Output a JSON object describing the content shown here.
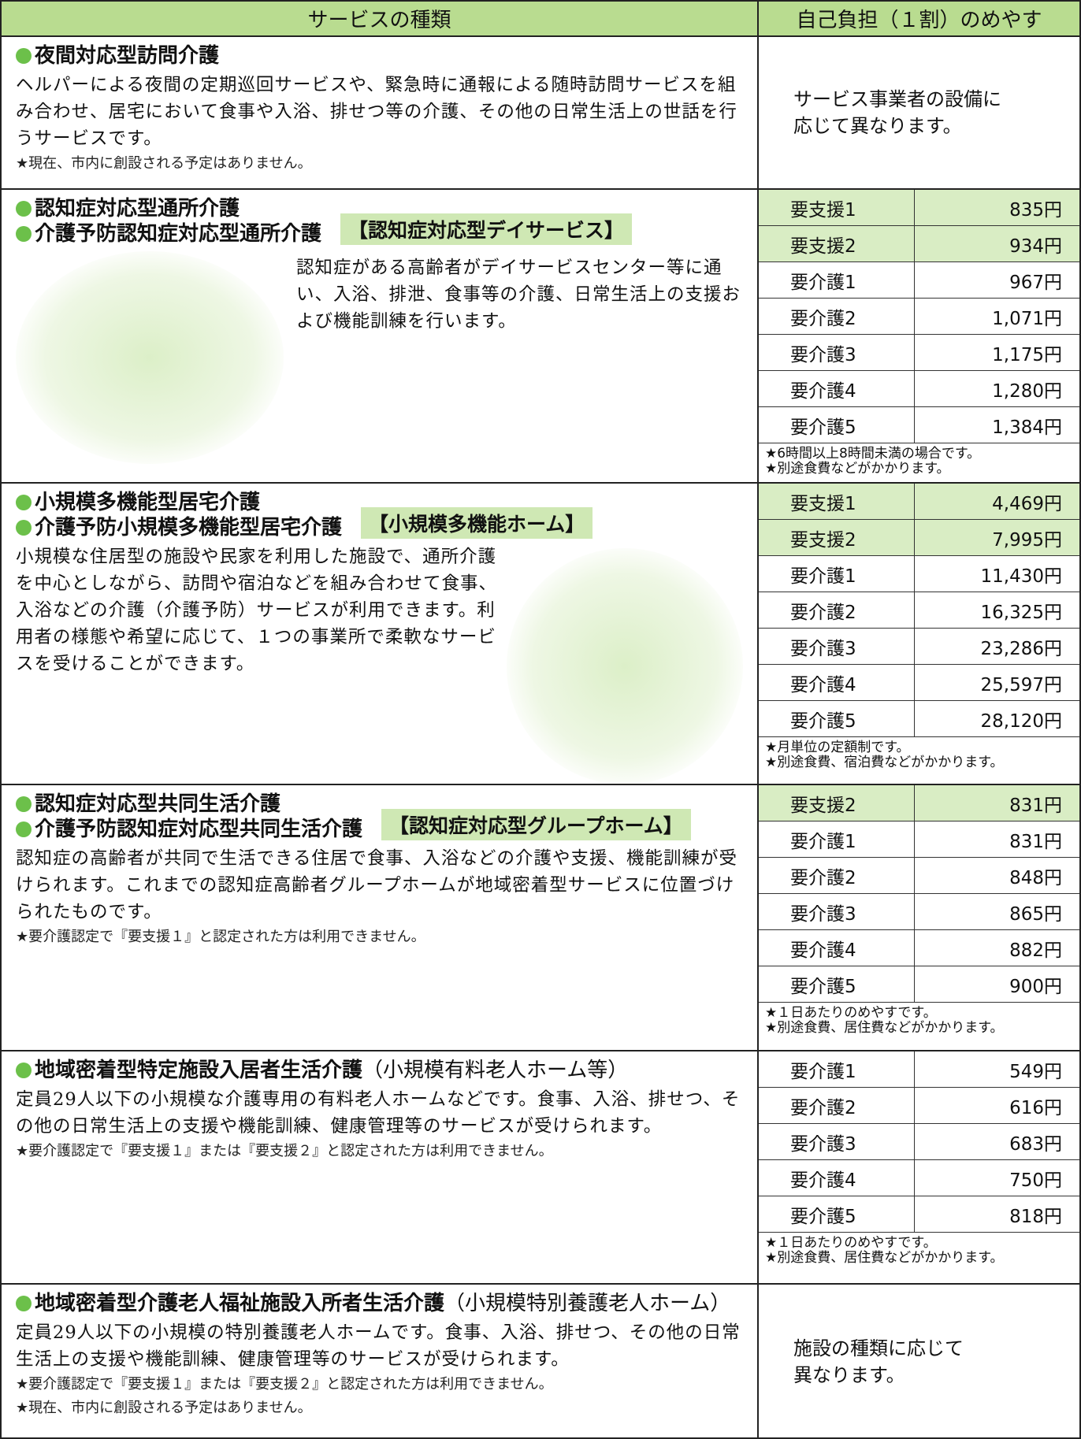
{
  "header": {
    "service": "サービスの種類",
    "cost": "自己負担（１割）のめやす"
  },
  "rows": [
    {
      "titles": [
        "夜間対応型訪問介護"
      ],
      "description": "ヘルパーによる夜間の定期巡回サービスや、緊急時に通報による随時訪問サービスを組み合わせ、居宅において食事や入浴、排せつ等の介護、その他の日常生活上の世話を行うサービスです。",
      "notes": [
        "★現在、市内に創設される予定はありません。"
      ],
      "cost_lines": [
        "サービス事業者の設備に",
        "応じて異なります。"
      ]
    },
    {
      "titles": [
        "認知症対応型通所介護",
        "介護予防認知症対応型通所介護"
      ],
      "tag": "【認知症対応型デイサービス】",
      "description": "認知症がある高齢者がデイサービスセンター等に通い、入浴、排泄、食事等の介護、日常生活上の支援および機能訓練を行います。",
      "prices": [
        {
          "level": "要支援1",
          "amount": "835円"
        },
        {
          "level": "要支援2",
          "amount": "934円"
        },
        {
          "level": "要介護1",
          "amount": "967円"
        },
        {
          "level": "要介護2",
          "amount": "1,071円"
        },
        {
          "level": "要介護3",
          "amount": "1,175円"
        },
        {
          "level": "要介護4",
          "amount": "1,280円"
        },
        {
          "level": "要介護5",
          "amount": "1,384円"
        }
      ],
      "price_notes": [
        "★6時間以上8時間未満の場合です。",
        "★別途食費などがかかります。"
      ]
    },
    {
      "titles": [
        "小規模多機能型居宅介護",
        "介護予防小規模多機能型居宅介護"
      ],
      "tag": "【小規模多機能ホーム】",
      "description": "小規模な住居型の施設や民家を利用した施設で、通所介護を中心としながら、訪問や宿泊などを組み合わせて食事、入浴などの介護（介護予防）サービスが利用できます。利用者の様態や希望に応じて、１つの事業所で柔軟なサービスを受けることができます。",
      "prices": [
        {
          "level": "要支援1",
          "amount": "4,469円"
        },
        {
          "level": "要支援2",
          "amount": "7,995円"
        },
        {
          "level": "要介護1",
          "amount": "11,430円"
        },
        {
          "level": "要介護2",
          "amount": "16,325円"
        },
        {
          "level": "要介護3",
          "amount": "23,286円"
        },
        {
          "level": "要介護4",
          "amount": "25,597円"
        },
        {
          "level": "要介護5",
          "amount": "28,120円"
        }
      ],
      "price_notes": [
        "★月単位の定額制です。",
        "★別途食費、宿泊費などがかかります。"
      ]
    },
    {
      "titles": [
        "認知症対応型共同生活介護",
        "介護予防認知症対応型共同生活介護"
      ],
      "tag": "【認知症対応型グループホーム】",
      "description": "認知症の高齢者が共同で生活できる住居で食事、入浴などの介護や支援、機能訓練が受けられます。これまでの認知症高齢者グループホームが地域密着型サービスに位置づけられたものです。",
      "notes": [
        "★要介護認定で『要支援１』と認定された方は利用できません。"
      ],
      "prices": [
        {
          "level": "要支援2",
          "amount": "831円"
        },
        {
          "level": "要介護1",
          "amount": "831円"
        },
        {
          "level": "要介護2",
          "amount": "848円"
        },
        {
          "level": "要介護3",
          "amount": "865円"
        },
        {
          "level": "要介護4",
          "amount": "882円"
        },
        {
          "level": "要介護5",
          "amount": "900円"
        }
      ],
      "price_notes": [
        "★１日あたりのめやすです。",
        "★別途食費、居住費などがかかります。"
      ]
    },
    {
      "titles": [
        "地域密着型特定施設入居者生活介護"
      ],
      "title_note": "（小規模有料老人ホーム等）",
      "description": "定員29人以下の小規模な介護専用の有料老人ホームなどです。食事、入浴、排せつ、その他の日常生活上の支援や機能訓練、健康管理等のサービスが受けられます。",
      "notes": [
        "★要介護認定で『要支援１』または『要支援２』と認定された方は利用できません。"
      ],
      "prices": [
        {
          "level": "要介護1",
          "amount": "549円"
        },
        {
          "level": "要介護2",
          "amount": "616円"
        },
        {
          "level": "要介護3",
          "amount": "683円"
        },
        {
          "level": "要介護4",
          "amount": "750円"
        },
        {
          "level": "要介護5",
          "amount": "818円"
        }
      ],
      "price_notes": [
        "★１日あたりのめやすです。",
        "★別途食費、居住費などがかかります。"
      ]
    },
    {
      "titles": [
        "地域密着型介護老人福祉施設入所者生活介護"
      ],
      "title_note": "（小規模特別養護老人ホーム）",
      "description": "定員29人以下の小規模の特別養護老人ホームです。食事、入浴、排せつ、その他の日常生活上の支援や機能訓練、健康管理等のサービスが受けられます。",
      "notes": [
        "★要介護認定で『要支援１』または『要支援２』と認定された方は利用できません。",
        "★現在、市内に創設される予定はありません。"
      ],
      "cost_lines": [
        "施設の種類に応じて",
        "異なります。"
      ]
    }
  ]
}
